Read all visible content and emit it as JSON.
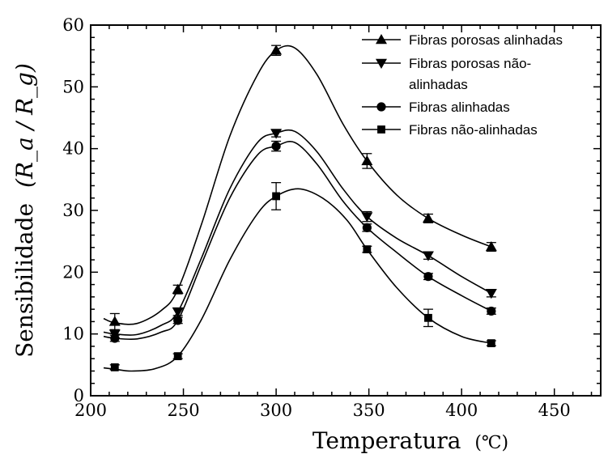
{
  "chart_data": {
    "type": "line",
    "xlabel": "Temperatura",
    "xlabel_unit": "(℃)",
    "ylabel": "Sensibilidade",
    "ylabel_formula": "(R_a / R_g)",
    "xlim": [
      200,
      475
    ],
    "ylim": [
      0,
      60
    ],
    "xticks": [
      200,
      250,
      300,
      350,
      400,
      450
    ],
    "yticks": [
      0,
      10,
      20,
      30,
      40,
      50,
      60
    ],
    "grid": false,
    "legend_position": "top-right",
    "x": [
      213,
      247,
      300,
      349,
      382,
      416
    ],
    "series": [
      {
        "name_lines": [
          "Fibras porosas alinhadas"
        ],
        "marker": "triangle-up",
        "values": [
          12.0,
          17.2,
          55.9,
          38.0,
          28.7,
          24.1
        ],
        "errors": [
          1.3,
          0.7,
          0.8,
          1.2,
          0.7,
          0.7
        ],
        "curve": [
          [
            207,
            12.5
          ],
          [
            213,
            11.8
          ],
          [
            225,
            11.7
          ],
          [
            238,
            13.8
          ],
          [
            247,
            17.2
          ],
          [
            260,
            28
          ],
          [
            275,
            42
          ],
          [
            290,
            52
          ],
          [
            300,
            55.9
          ],
          [
            310,
            56.3
          ],
          [
            322,
            52
          ],
          [
            336,
            44
          ],
          [
            349,
            38.0
          ],
          [
            365,
            32.5
          ],
          [
            382,
            28.7
          ],
          [
            400,
            26
          ],
          [
            416,
            24.1
          ]
        ]
      },
      {
        "name_lines": [
          "Fibras porosas não-",
          "alinhadas"
        ],
        "marker": "triangle-down",
        "values": [
          10.0,
          13.6,
          42.5,
          29.0,
          22.7,
          16.6
        ],
        "errors": [
          0.6,
          0.6,
          0.6,
          0.8,
          0.6,
          0.6
        ],
        "curve": [
          [
            207,
            10.3
          ],
          [
            213,
            10.0
          ],
          [
            225,
            9.9
          ],
          [
            238,
            11.4
          ],
          [
            247,
            13.6
          ],
          [
            260,
            22.5
          ],
          [
            275,
            33.5
          ],
          [
            290,
            41.0
          ],
          [
            300,
            42.5
          ],
          [
            310,
            42.8
          ],
          [
            322,
            39.5
          ],
          [
            336,
            33.5
          ],
          [
            349,
            29.0
          ],
          [
            365,
            25.5
          ],
          [
            382,
            22.7
          ],
          [
            400,
            19.3
          ],
          [
            416,
            16.6
          ]
        ]
      },
      {
        "name_lines": [
          "Fibras alinhadas"
        ],
        "marker": "circle",
        "values": [
          9.3,
          12.2,
          40.4,
          27.2,
          19.3,
          13.7
        ],
        "errors": [
          0.5,
          0.5,
          0.8,
          0.6,
          0.5,
          0.5
        ],
        "curve": [
          [
            207,
            9.6
          ],
          [
            213,
            9.3
          ],
          [
            225,
            9.2
          ],
          [
            238,
            10.3
          ],
          [
            247,
            12.2
          ],
          [
            260,
            21.5
          ],
          [
            275,
            32.0
          ],
          [
            290,
            39.0
          ],
          [
            300,
            40.4
          ],
          [
            310,
            41.0
          ],
          [
            322,
            37.5
          ],
          [
            336,
            31.5
          ],
          [
            349,
            27.2
          ],
          [
            365,
            23.2
          ],
          [
            382,
            19.3
          ],
          [
            400,
            16.2
          ],
          [
            416,
            13.7
          ]
        ]
      },
      {
        "name_lines": [
          "Fibras não-alinhadas"
        ],
        "marker": "square",
        "values": [
          4.6,
          6.4,
          32.3,
          23.7,
          12.6,
          8.5
        ],
        "errors": [
          0.4,
          0.4,
          2.2,
          0.5,
          1.4,
          0.4
        ],
        "curve": [
          [
            207,
            4.5
          ],
          [
            213,
            4.3
          ],
          [
            222,
            4.0
          ],
          [
            235,
            4.4
          ],
          [
            247,
            6.4
          ],
          [
            260,
            12.5
          ],
          [
            275,
            22.0
          ],
          [
            290,
            29.5
          ],
          [
            300,
            32.3
          ],
          [
            312,
            33.5
          ],
          [
            325,
            32.0
          ],
          [
            338,
            28.5
          ],
          [
            349,
            23.7
          ],
          [
            365,
            17.5
          ],
          [
            382,
            12.6
          ],
          [
            400,
            9.6
          ],
          [
            416,
            8.5
          ]
        ]
      }
    ]
  }
}
